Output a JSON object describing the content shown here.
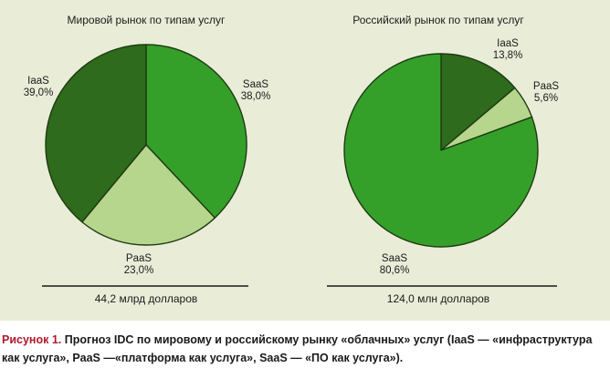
{
  "colors": {
    "background": "#e9edd8",
    "saas": "#34a02a",
    "iaas": "#2e6b1c",
    "paas": "#b6d68e",
    "stroke": "#1f3a12",
    "caption_label": "#b0182c"
  },
  "chart_data": [
    {
      "type": "pie",
      "title": "Мировой рынок по типам услуг",
      "total_label": "44,2 млрд долларов",
      "slices": [
        {
          "name": "SaaS",
          "value": 38.0,
          "value_label": "38,0%",
          "color": "#34a02a"
        },
        {
          "name": "PaaS",
          "value": 23.0,
          "value_label": "23,0%",
          "color": "#b6d68e"
        },
        {
          "name": "IaaS",
          "value": 39.0,
          "value_label": "39,0%",
          "color": "#2e6b1c"
        }
      ]
    },
    {
      "type": "pie",
      "title": "Российский рынок по типам услуг",
      "total_label": "124,0 млн долларов",
      "slices": [
        {
          "name": "IaaS",
          "value": 13.8,
          "value_label": "13,8%",
          "color": "#2e6b1c"
        },
        {
          "name": "PaaS",
          "value": 5.6,
          "value_label": "5,6%",
          "color": "#b6d68e"
        },
        {
          "name": "SaaS",
          "value": 80.6,
          "value_label": "80,6%",
          "color": "#34a02a"
        }
      ]
    }
  ],
  "caption": {
    "label": "Рисунок 1.",
    "text": "Прогноз IDC по мировому и российскому рынку «облачных» услуг (IaaS — «инфраструктура как услуга», PaaS —«платформа как услуга», SaaS — «ПО как услуга»)."
  }
}
